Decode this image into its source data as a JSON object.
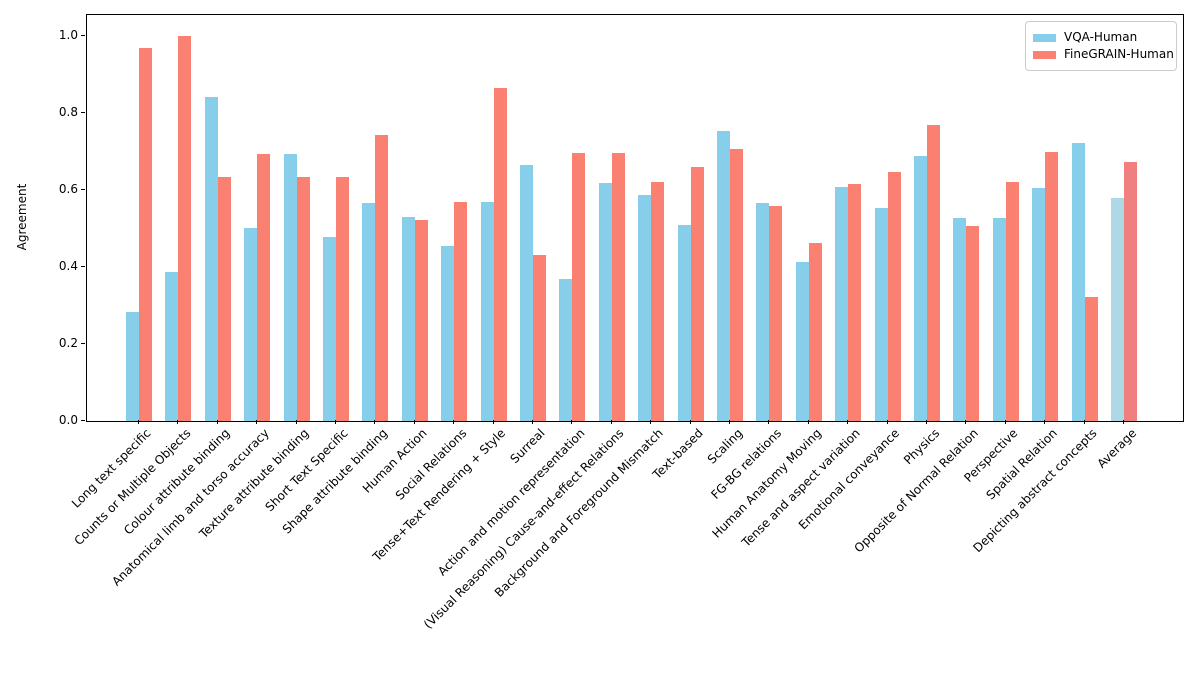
{
  "chart_data": {
    "type": "bar",
    "title": "",
    "xlabel": "",
    "ylabel": "Agreement",
    "ylim": [
      0.0,
      1.05
    ],
    "yticks": [
      0.0,
      0.2,
      0.4,
      0.6,
      0.8,
      1.0
    ],
    "grid": false,
    "legend_position": "upper right",
    "categories": [
      "Long text specific",
      "Counts or Multiple Objects",
      "Colour attribute binding",
      "Anatomical limb and torso accuracy",
      "Texture attribute binding",
      "Short Text Specific",
      "Shape attribute binding",
      "Human Action",
      "Social Relations",
      "Tense+Text Rendering + Style",
      "Surreal",
      "Action and motion representation",
      "(Visual Reasoning) Cause-and-effect Relations",
      "Background and Foreground Mismatch",
      "Text-based",
      "Scaling",
      "FG-BG relations",
      "Human Anatomy Moving",
      "Tense and aspect variation",
      "Emotional conveyance",
      "Physics",
      "Opposite of Normal Relation",
      "Perspective",
      "Spatial Relation",
      "Depicting abstract concepts",
      "Average"
    ],
    "series": [
      {
        "name": "VQA-Human",
        "color": "#87CEEB",
        "values": [
          0.282,
          0.386,
          0.842,
          0.501,
          0.694,
          0.477,
          0.567,
          0.531,
          0.455,
          0.569,
          0.664,
          0.368,
          0.617,
          0.588,
          0.509,
          0.753,
          0.566,
          0.413,
          0.608,
          0.552,
          0.688,
          0.526,
          0.526,
          0.605,
          0.723,
          0.578
        ]
      },
      {
        "name": "FineGRAIN-Human",
        "color": "#FA8072",
        "values": [
          0.969,
          1.0,
          0.634,
          0.694,
          0.633,
          0.634,
          0.742,
          0.522,
          0.57,
          0.864,
          0.432,
          0.695,
          0.696,
          0.621,
          0.66,
          0.707,
          0.558,
          0.462,
          0.615,
          0.648,
          0.768,
          0.506,
          0.621,
          0.699,
          0.321,
          0.673
        ]
      }
    ],
    "highlight_category": "Average",
    "highlight_colors": [
      "#ADD8E6",
      "#F08080"
    ]
  }
}
